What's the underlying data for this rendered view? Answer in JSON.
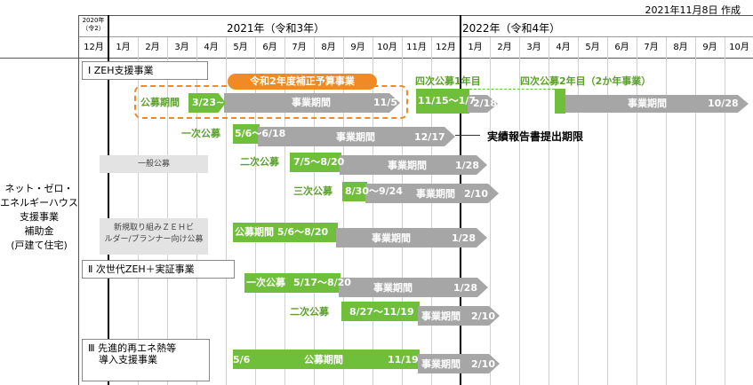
{
  "header": {
    "created": "2021年11月8日 作成",
    "first_col_year": "2020年",
    "first_col_era": "（令2）",
    "year_2021": "2021年（令和3年）",
    "year_2022": "2022年（令和4年）",
    "months": [
      "12月",
      "1月",
      "2月",
      "3月",
      "4月",
      "5月",
      "6月",
      "7月",
      "8月",
      "9月",
      "10月",
      "11月",
      "12月",
      "1月",
      "2月",
      "3月",
      "4月",
      "5月",
      "6月",
      "7月",
      "8月",
      "9月",
      "10月"
    ]
  },
  "left_label": [
    "ネット・ゼロ・",
    "エネルギーハウス",
    "支援事業",
    "補助金",
    "(戸建て住宅)"
  ],
  "sections": {
    "s1": "Ⅰ ZEH支援事業",
    "s2": "Ⅱ 次世代ZEH＋実証事業",
    "s3_line1": "Ⅲ 先進的再エネ熱等",
    "s3_line2": "導入支援事業"
  },
  "boxes": {
    "ippan": "一般公募",
    "shinki_line1": "新規取り組みＺＥＨビ",
    "shinki_line2": "ルダー/プランナー向け公募"
  },
  "rows": {
    "supplementary_badge": "令和2年度補正予算事業",
    "supp_koubo_label": "公募期間",
    "supp_koubo_date": "3/23~",
    "supp_jigyo": "事業期間",
    "supp_end": "11/5",
    "yoji1_label": "四次公募1年目",
    "yoji1_date": "11/15～1/7",
    "yoji1_end": "2/18",
    "yoji2_label": "四次公募2年目（2か年事業）",
    "yoji2_jigyo": "事業期間",
    "yoji2_end": "10/28",
    "ichiji_label": "一次公募",
    "ichiji_date": "5/6～6/18",
    "ichiji_jigyo": "事業期間",
    "ichiji_end": "12/17",
    "report_deadline": "実績報告書提出期限",
    "niji_label": "二次公募",
    "niji_date": "7/5～8/20",
    "niji_jigyo": "事業期間",
    "niji_end": "1/28",
    "sanji_label": "三次公募",
    "sanji_date": "8/30～9/24",
    "sanji_jigyo": "事業期間",
    "sanji_end": "2/10",
    "shinki_koubo": "公募期間 5/6～8/20",
    "shinki_jigyo": "事業期間",
    "shinki_end": "1/28",
    "s2_ichiji_label": "一次公募",
    "s2_ichiji_date": "5/17～8/20",
    "s2_ichiji_jigyo": "事業期間",
    "s2_ichiji_end": "1/28",
    "s2_niji_label": "二次公募",
    "s2_niji_date": "8/27～11/19",
    "s2_niji_jigyo": "事業期間",
    "s2_niji_end": "2/10",
    "s3_start": "5/6",
    "s3_koubo": "公募期間",
    "s3_koubo_end": "11/19",
    "s3_jigyo": "事業期間",
    "s3_end": "2/10"
  },
  "colors": {
    "green": "#6fbf3a",
    "grey_bar": "#a6a6a6",
    "orange": "#f08a24"
  }
}
